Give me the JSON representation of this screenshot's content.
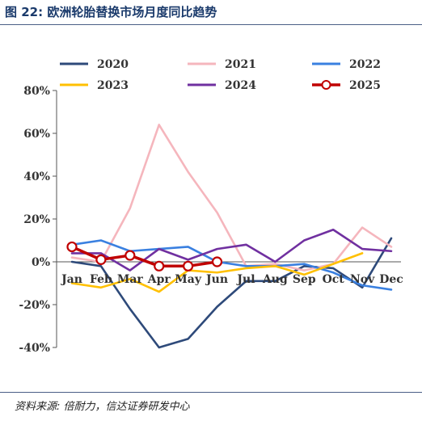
{
  "figure": {
    "title": "图 22:  欧洲轮胎替换市场月度同比趋势",
    "source": "资料来源:  倍耐力，信达证券研发中心"
  },
  "chart_data": {
    "type": "line",
    "title": "",
    "xlabel": "",
    "ylabel": "",
    "categories": [
      "Jan",
      "Feb",
      "Mar",
      "Apr",
      "May",
      "Jun",
      "Jul",
      "Aug",
      "Sep",
      "Oct",
      "Nov",
      "Dec"
    ],
    "ylim": [
      -40,
      80
    ],
    "yticks": [
      -40,
      -20,
      0,
      20,
      40,
      60,
      80
    ],
    "ytick_labels": [
      "-40%",
      "-20%",
      "0%",
      "20%",
      "40%",
      "60%",
      "80%"
    ],
    "grid": false,
    "legend_position": "top",
    "series": [
      {
        "name": "2020",
        "color": "#2e4a7a",
        "marker": false,
        "values": [
          0,
          -2,
          -22,
          -40,
          -36,
          -21,
          -9,
          -9,
          -2,
          -3,
          -12,
          11
        ]
      },
      {
        "name": "2021",
        "color": "#f5b6bd",
        "marker": false,
        "values": [
          2,
          0,
          25,
          64,
          42,
          23,
          -2,
          -1,
          -4,
          -1,
          16,
          7
        ]
      },
      {
        "name": "2022",
        "color": "#3a80e0",
        "marker": false,
        "values": [
          8,
          10,
          5,
          6,
          7,
          0,
          -2,
          -2,
          -1,
          -5,
          -11,
          -13
        ]
      },
      {
        "name": "2023",
        "color": "#ffc000",
        "marker": false,
        "values": [
          -10,
          -12,
          -8,
          -14,
          -4,
          -5,
          -3,
          -2,
          -6,
          -1,
          4,
          null
        ]
      },
      {
        "name": "2024",
        "color": "#7030a0",
        "marker": false,
        "values": [
          4,
          4,
          -4,
          6,
          1,
          6,
          8,
          0,
          10,
          15,
          6,
          5
        ]
      },
      {
        "name": "2025",
        "color": "#c00000",
        "marker": true,
        "values": [
          7,
          1,
          3,
          -2,
          -2,
          0,
          null,
          null,
          null,
          null,
          null,
          null
        ]
      }
    ]
  }
}
